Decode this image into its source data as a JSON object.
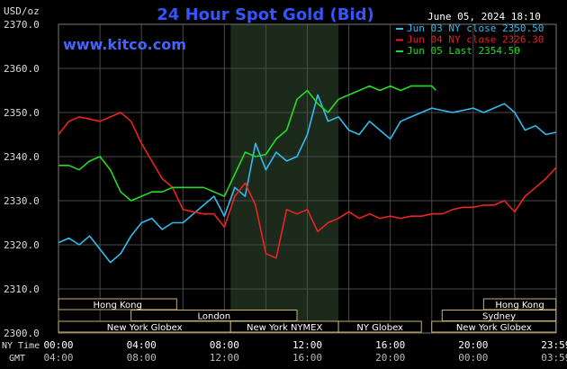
{
  "chart_data": {
    "type": "line",
    "title": "24 Hour Spot Gold (Bid)",
    "source": "www.kitco.com",
    "timestamp": "June 05, 2024 18:10",
    "y_unit": "USD/oz",
    "ylim": [
      2300,
      2370
    ],
    "y_ticks": [
      "2370.0",
      "2360.0",
      "2350.0",
      "2340.0",
      "2330.0",
      "2320.0",
      "2310.0",
      "2300.0"
    ],
    "x_range_hours": [
      0,
      24
    ],
    "x_ticks_ny": [
      "00:00",
      "04:00",
      "08:00",
      "12:00",
      "16:00",
      "20:00",
      "23:59"
    ],
    "x_ticks_gmt": [
      "04:00",
      "08:00",
      "12:00",
      "16:00",
      "20:00",
      "00:00",
      "03:59"
    ],
    "x_axis_labels": [
      "NY Time",
      "GMT"
    ],
    "grid": true,
    "legend_placement": "top-right",
    "sessions": [
      {
        "name": "Hong Kong",
        "start": 0,
        "end": 5.7,
        "row": 0
      },
      {
        "name": "Hong Kong",
        "start": 20.5,
        "end": 23.99,
        "row": 0
      },
      {
        "name": "London",
        "start": 3.5,
        "end": 11.5,
        "row": 1
      },
      {
        "name": "Sydney",
        "start": 18.5,
        "end": 23.99,
        "row": 1
      },
      {
        "name": "New York Globex",
        "start": 0,
        "end": 8.3,
        "row": 2
      },
      {
        "name": "New York NYMEX",
        "start": 8.3,
        "end": 13.5,
        "row": 2
      },
      {
        "name": "NY Globex",
        "start": 13.5,
        "end": 17.5,
        "row": 2
      },
      {
        "name": "New York Globex",
        "start": 18,
        "end": 23.99,
        "row": 2
      }
    ],
    "highlight_hours": [
      8.3,
      13.5
    ],
    "series": [
      {
        "name": "Jun 03 NY close",
        "last_value": "2350.50",
        "color": "#33bbee",
        "x": [
          0,
          0.5,
          1,
          1.5,
          2,
          2.5,
          3,
          3.5,
          4,
          4.5,
          5,
          5.5,
          6,
          6.5,
          7,
          7.5,
          8,
          8.5,
          9,
          9.5,
          10,
          10.5,
          11,
          11.5,
          12,
          12.5,
          13,
          13.5,
          14,
          14.5,
          15,
          15.5,
          16,
          16.5,
          17,
          17.5,
          18,
          18.5,
          19,
          19.5,
          20,
          20.5,
          21,
          21.5,
          22,
          22.5,
          23,
          23.5,
          23.99
        ],
        "values": [
          2320.5,
          2321.5,
          2320,
          2322,
          2319,
          2316,
          2318,
          2322,
          2325,
          2326,
          2323.5,
          2325,
          2325,
          2327,
          2329,
          2331,
          2326.5,
          2333,
          2331,
          2343,
          2337,
          2341,
          2339,
          2340,
          2345,
          2354,
          2348,
          2349,
          2346,
          2345,
          2348,
          2346,
          2344,
          2348,
          2349,
          2350,
          2351,
          2350.5,
          2350,
          2350.5,
          2351,
          2350,
          2351,
          2352,
          2350,
          2346,
          2347,
          2345,
          2345.5
        ]
      },
      {
        "name": "Jun 04 NY close",
        "last_value": "2326.30",
        "color": "#ee2222",
        "x": [
          0,
          0.5,
          1,
          1.5,
          2,
          2.5,
          3,
          3.5,
          4,
          4.5,
          5,
          5.5,
          6,
          6.5,
          7,
          7.5,
          8,
          8.5,
          9,
          9.5,
          10,
          10.5,
          11,
          11.5,
          12,
          12.5,
          13,
          13.5,
          14,
          14.5,
          15,
          15.5,
          16,
          16.5,
          17,
          17.5,
          18,
          18.5,
          19,
          19.5,
          20,
          20.5,
          21,
          21.5,
          22,
          22.5,
          23,
          23.5,
          23.99
        ],
        "values": [
          2345,
          2348,
          2349,
          2348.5,
          2348,
          2349,
          2350,
          2348,
          2343,
          2339,
          2335,
          2333,
          2328,
          2327.5,
          2327,
          2327,
          2324,
          2331,
          2334,
          2329,
          2318,
          2317,
          2328,
          2327,
          2328,
          2323,
          2325,
          2326,
          2327.5,
          2326,
          2327,
          2326,
          2326.5,
          2326,
          2326.5,
          2326.5,
          2327,
          2327,
          2328,
          2328.5,
          2328.5,
          2329,
          2329,
          2330,
          2327.5,
          2331,
          2333,
          2335,
          2337.5
        ]
      },
      {
        "name": "Jun 05 Last",
        "last_value": "2354.50",
        "color": "#22dd22",
        "x": [
          0,
          0.5,
          1,
          1.5,
          2,
          2.5,
          3,
          3.5,
          4,
          4.5,
          5,
          5.5,
          6,
          6.5,
          7,
          7.5,
          8,
          8.5,
          9,
          9.5,
          10,
          10.5,
          11,
          11.5,
          12,
          12.5,
          13,
          13.5,
          14,
          14.5,
          15,
          15.5,
          16,
          16.5,
          17,
          17.5,
          18,
          18.2
        ],
        "values": [
          2338,
          2338,
          2337,
          2339,
          2340,
          2337,
          2332,
          2330,
          2331,
          2332,
          2332,
          2333,
          2333,
          2333,
          2333,
          2332,
          2331,
          2336,
          2341,
          2340,
          2340.5,
          2344,
          2346,
          2353,
          2355,
          2352,
          2350,
          2353,
          2354,
          2355,
          2356,
          2355,
          2356,
          2355,
          2356,
          2356,
          2356,
          2355
        ]
      }
    ]
  }
}
